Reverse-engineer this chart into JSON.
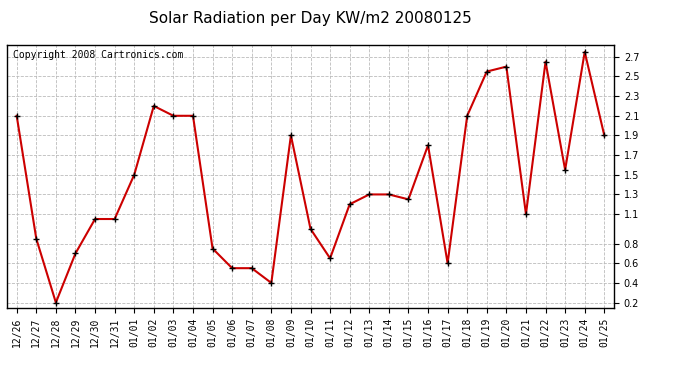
{
  "title": "Solar Radiation per Day KW/m2 20080125",
  "copyright": "Copyright 2008 Cartronics.com",
  "labels": [
    "12/26",
    "12/27",
    "12/28",
    "12/29",
    "12/30",
    "12/31",
    "01/01",
    "01/02",
    "01/03",
    "01/04",
    "01/05",
    "01/06",
    "01/07",
    "01/08",
    "01/09",
    "01/10",
    "01/11",
    "01/12",
    "01/13",
    "01/14",
    "01/15",
    "01/16",
    "01/17",
    "01/18",
    "01/19",
    "01/20",
    "01/21",
    "01/22",
    "01/23",
    "01/24",
    "01/25"
  ],
  "values": [
    2.1,
    0.85,
    0.2,
    0.7,
    1.05,
    1.05,
    1.5,
    2.2,
    2.1,
    2.1,
    0.75,
    0.55,
    0.55,
    0.4,
    1.9,
    0.95,
    0.65,
    1.2,
    1.3,
    1.3,
    1.25,
    1.8,
    0.6,
    2.1,
    2.55,
    2.6,
    1.1,
    2.65,
    1.55,
    2.75,
    1.9
  ],
  "line_color": "#cc0000",
  "marker": "+",
  "marker_size": 5,
  "marker_color": "#000000",
  "ylim": [
    0.15,
    2.82
  ],
  "yticks": [
    0.2,
    0.4,
    0.6,
    0.8,
    1.1,
    1.3,
    1.5,
    1.7,
    1.9,
    2.1,
    2.3,
    2.5,
    2.7
  ],
  "bg_color": "#ffffff",
  "plot_bg_color": "#ffffff",
  "grid_color": "#bbbbbb",
  "title_fontsize": 11,
  "copyright_fontsize": 7,
  "tick_fontsize": 7,
  "ytick_fontsize": 7
}
